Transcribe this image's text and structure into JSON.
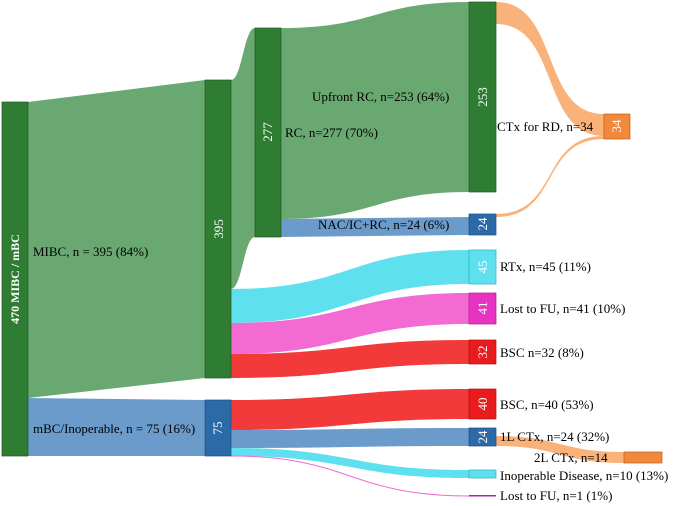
{
  "chart_data": {
    "type": "sankey",
    "title": "",
    "colors": {
      "dark_green": "#2e7d32",
      "light_green": "#6aa872",
      "steel_blue": "#2b6aa6",
      "light_blue": "#6b9bcb",
      "cyan": "#5ee0ee",
      "magenta": "#f36ad2",
      "red": "#f23a3a",
      "orange": "#f2883a",
      "light_orange": "#f9b27a",
      "purple": "#9c2aa6"
    },
    "nodes": {
      "root": {
        "value": "470",
        "label": "470 MIBC / mBC"
      },
      "mibc": {
        "value": "395",
        "label": "MIBC, n = 395 (84%)"
      },
      "mbc": {
        "value": "75",
        "label": "mBC/Inoperable, n = 75 (16%)"
      },
      "rc": {
        "value": "277",
        "label": "RC, n=277 (70%)"
      },
      "upfront_rc": {
        "value": "253",
        "label": "Upfront RC, n=253 (64%)"
      },
      "nac_rc": {
        "value": "24",
        "label": "NAC/IC+RC, n=24 (6%)"
      },
      "ctx_rd": {
        "value": "34",
        "label": "CTx for RD, n=34"
      },
      "rtx": {
        "value": "45",
        "label": "RTx, n=45 (11%)"
      },
      "lost_fu_mibc": {
        "value": "41",
        "label": "Lost to FU, n=41 (10%)"
      },
      "bsc_mibc": {
        "value": "32",
        "label": "BSC n=32 (8%)"
      },
      "bsc_mbc": {
        "value": "40",
        "label": "BSC, n=40 (53%)"
      },
      "ctx_1l": {
        "value": "24",
        "label": "1L CTx, n=24 (32%)"
      },
      "ctx_2l": {
        "value": "14",
        "label": "2L CTx, n=14"
      },
      "inoperable": {
        "value": "10",
        "label": "Inoperable Disease, n=10 (13%)"
      },
      "lost_fu_mbc": {
        "value": "1",
        "label": "Lost to FU, n=1 (1%)"
      }
    },
    "flows": [
      {
        "from": "root",
        "to": "mibc",
        "value": 395
      },
      {
        "from": "root",
        "to": "mbc",
        "value": 75
      },
      {
        "from": "mibc",
        "to": "rc",
        "value": 277
      },
      {
        "from": "mibc",
        "to": "rtx",
        "value": 45
      },
      {
        "from": "mibc",
        "to": "lost_fu_mibc",
        "value": 41
      },
      {
        "from": "mibc",
        "to": "bsc_mibc",
        "value": 32
      },
      {
        "from": "rc",
        "to": "upfront_rc",
        "value": 253
      },
      {
        "from": "rc",
        "to": "nac_rc",
        "value": 24
      },
      {
        "from": "upfront_rc",
        "to": "ctx_rd",
        "value": 30
      },
      {
        "from": "nac_rc",
        "to": "ctx_rd",
        "value": 4
      },
      {
        "from": "mbc",
        "to": "bsc_mbc",
        "value": 40
      },
      {
        "from": "mbc",
        "to": "ctx_1l",
        "value": 24
      },
      {
        "from": "mbc",
        "to": "inoperable",
        "value": 10
      },
      {
        "from": "mbc",
        "to": "lost_fu_mbc",
        "value": 1
      },
      {
        "from": "ctx_1l",
        "to": "ctx_2l",
        "value": 14
      }
    ]
  }
}
